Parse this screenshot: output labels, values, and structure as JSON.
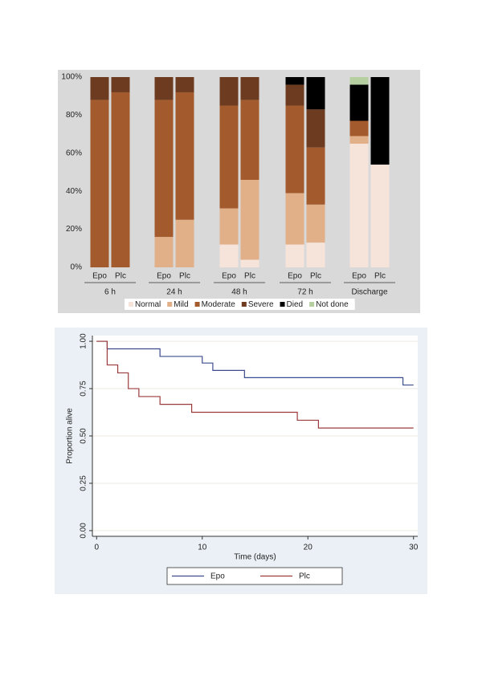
{
  "chart_data": [
    {
      "type": "bar",
      "stacked": true,
      "categories": [
        "Epo",
        "Plc",
        "Epo",
        "Plc",
        "Epo",
        "Plc",
        "Epo",
        "Plc",
        "Epo",
        "Plc"
      ],
      "groups": [
        "6 h",
        "24 h",
        "48 h",
        "72 h",
        "Discharge"
      ],
      "series": [
        {
          "name": "Normal",
          "color": "#f6e4da",
          "values": [
            0,
            0,
            0,
            0,
            12,
            4,
            12,
            13,
            65,
            54
          ]
        },
        {
          "name": "Mild",
          "color": "#e1b089",
          "values": [
            0,
            0,
            16,
            25,
            19,
            42,
            27,
            20,
            4,
            0
          ]
        },
        {
          "name": "Moderate",
          "color": "#a35a2c",
          "values": [
            88,
            92,
            72,
            67,
            54,
            42,
            46,
            30,
            8,
            0
          ]
        },
        {
          "name": "Severe",
          "color": "#6d3b1f",
          "values": [
            12,
            8,
            12,
            8,
            15,
            12,
            11,
            20,
            0,
            0
          ]
        },
        {
          "name": "Died",
          "color": "#000000",
          "values": [
            0,
            0,
            0,
            0,
            0,
            0,
            4,
            17,
            19,
            46
          ]
        },
        {
          "name": "Not done",
          "color": "#b6cfa0",
          "values": [
            0,
            0,
            0,
            0,
            0,
            0,
            0,
            0,
            4,
            0
          ]
        }
      ],
      "ylim": [
        0,
        100
      ],
      "yticks": [
        {
          "value": 0,
          "label": "0%"
        },
        {
          "value": 20,
          "label": "20%"
        },
        {
          "value": 40,
          "label": "40%"
        },
        {
          "value": 60,
          "label": "60%"
        },
        {
          "value": 80,
          "label": "80%"
        },
        {
          "value": 100,
          "label": "100%"
        }
      ],
      "legend": "bottom"
    },
    {
      "type": "line",
      "step": true,
      "xlabel": "Time (days)",
      "ylabel": "Proportion alive",
      "series": [
        {
          "name": "Epo",
          "color": "#3d4c8e",
          "x": [
            0,
            1,
            1,
            6,
            6,
            10,
            10,
            11,
            11,
            14,
            14,
            29,
            29,
            30
          ],
          "values": [
            1,
            1,
            0.96,
            0.96,
            0.92,
            0.92,
            0.885,
            0.885,
            0.846,
            0.846,
            0.808,
            0.808,
            0.769,
            0.769
          ]
        },
        {
          "name": "Plc",
          "color": "#9c3b3b",
          "x": [
            0,
            1,
            1,
            2,
            2,
            3,
            3,
            4,
            4,
            6,
            6,
            9,
            9,
            19,
            19,
            21,
            21,
            30
          ],
          "values": [
            1,
            1,
            0.875,
            0.875,
            0.833,
            0.833,
            0.75,
            0.75,
            0.708,
            0.708,
            0.667,
            0.667,
            0.625,
            0.625,
            0.583,
            0.583,
            0.542,
            0.542
          ]
        }
      ],
      "xlim": [
        -0.4,
        30.4
      ],
      "xticks": [
        0,
        10,
        20,
        30
      ],
      "ylim": [
        -0.03,
        1.03
      ],
      "yticks": [
        {
          "value": 0,
          "label": "0.00"
        },
        {
          "value": 0.25,
          "label": "0.25"
        },
        {
          "value": 0.5,
          "label": "0.50"
        },
        {
          "value": 0.75,
          "label": "0.75"
        },
        {
          "value": 1,
          "label": "1.00"
        }
      ],
      "grid": true,
      "legend": "bottom"
    }
  ]
}
